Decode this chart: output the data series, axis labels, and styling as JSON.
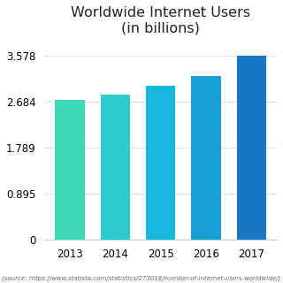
{
  "title": "Worldwide Internet Users\n(in billions)",
  "categories": [
    "2013",
    "2014",
    "2015",
    "2016",
    "2017"
  ],
  "values": [
    2.72,
    2.82,
    2.99,
    3.18,
    3.578
  ],
  "bar_colors": [
    "#3DD9B8",
    "#2ECBCC",
    "#16B8E0",
    "#1A9FD4",
    "#1877C4"
  ],
  "yticks": [
    0,
    0.895,
    1.789,
    2.684,
    3.578
  ],
  "ytick_labels": [
    "0",
    "0.895",
    "1.789",
    "2.684",
    "3.578"
  ],
  "ylim": [
    0,
    3.85
  ],
  "source": "(source: https://www.statista.com/statistics/273018/number-of-internet-users-worldwide/)",
  "background_color": "#ffffff",
  "grid_color": "#e0e0e0",
  "title_fontsize": 11.5,
  "tick_fontsize": 8.5,
  "source_fontsize": 5.0
}
